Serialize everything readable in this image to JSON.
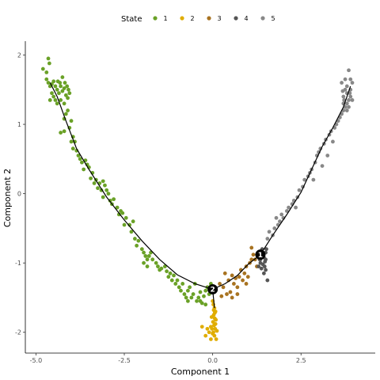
{
  "chart_data": {
    "type": "scatter",
    "xlabel": "Component 1",
    "ylabel": "Component 2",
    "xlim": [
      -5.3,
      4.6
    ],
    "ylim": [
      -2.3,
      2.2
    ],
    "xticks": [
      {
        "value": -5.0,
        "label": "-5.0"
      },
      {
        "value": -2.5,
        "label": "-2.5"
      },
      {
        "value": 0.0,
        "label": "0.0"
      },
      {
        "value": 2.5,
        "label": "2.5"
      }
    ],
    "yticks": [
      {
        "value": 2,
        "label": "2"
      },
      {
        "value": 1,
        "label": "1"
      },
      {
        "value": 0,
        "label": "0"
      },
      {
        "value": -1,
        "label": "-1"
      },
      {
        "value": -2,
        "label": "-2"
      }
    ],
    "grid": false,
    "legend": {
      "title": "State",
      "placement": "top",
      "entries": [
        {
          "label": "1",
          "color": "#6aa127"
        },
        {
          "label": "2",
          "color": "#e0ad00"
        },
        {
          "label": "3",
          "color": "#a87321"
        },
        {
          "label": "4",
          "color": "#555555"
        },
        {
          "label": "5",
          "color": "#888888"
        }
      ]
    },
    "trajectory": [
      [
        -4.6,
        1.6
      ],
      [
        -4.4,
        1.4
      ],
      [
        -4.15,
        1.05
      ],
      [
        -3.85,
        0.65
      ],
      [
        -3.5,
        0.35
      ],
      [
        -3.0,
        -0.05
      ],
      [
        -2.5,
        -0.38
      ],
      [
        -2.0,
        -0.68
      ],
      [
        -1.5,
        -0.95
      ],
      [
        -1.0,
        -1.17
      ],
      [
        -0.5,
        -1.3
      ],
      [
        0.0,
        -1.38
      ],
      [
        0.35,
        -1.3
      ],
      [
        0.7,
        -1.18
      ],
      [
        1.0,
        -1.02
      ],
      [
        1.35,
        -0.88
      ],
      [
        1.7,
        -0.6
      ],
      [
        2.1,
        -0.3
      ],
      [
        2.5,
        0.02
      ],
      [
        2.8,
        0.35
      ],
      [
        3.1,
        0.68
      ],
      [
        3.4,
        0.95
      ],
      [
        3.7,
        1.25
      ],
      [
        3.9,
        1.55
      ]
    ],
    "trajectory_branch": [
      [
        0.0,
        -1.38
      ],
      [
        0.05,
        -1.65
      ]
    ],
    "branch_points": [
      {
        "label": "1",
        "x": 1.35,
        "y": -0.88
      },
      {
        "label": "2",
        "x": 0.0,
        "y": -1.38
      }
    ],
    "series": [
      {
        "name": "1",
        "color": "#6aa127",
        "points": [
          [
            -4.8,
            1.8
          ],
          [
            -4.7,
            1.75
          ],
          [
            -4.65,
            1.95
          ],
          [
            -4.62,
            1.88
          ],
          [
            -4.7,
            1.65
          ],
          [
            -4.65,
            1.6
          ],
          [
            -4.6,
            1.55
          ],
          [
            -4.55,
            1.58
          ],
          [
            -4.5,
            1.62
          ],
          [
            -4.45,
            1.55
          ],
          [
            -4.4,
            1.5
          ],
          [
            -4.35,
            1.45
          ],
          [
            -4.3,
            1.55
          ],
          [
            -4.25,
            1.48
          ],
          [
            -4.2,
            1.52
          ],
          [
            -4.15,
            1.42
          ],
          [
            -4.1,
            1.38
          ],
          [
            -4.55,
            1.45
          ],
          [
            -4.5,
            1.4
          ],
          [
            -4.45,
            1.35
          ],
          [
            -4.38,
            1.62
          ],
          [
            -4.32,
            1.6
          ],
          [
            -4.25,
            1.68
          ],
          [
            -4.18,
            1.6
          ],
          [
            -4.12,
            1.55
          ],
          [
            -4.08,
            1.5
          ],
          [
            -4.05,
            1.45
          ],
          [
            -4.6,
            1.35
          ],
          [
            -4.4,
            1.3
          ],
          [
            -4.3,
            1.35
          ],
          [
            -4.2,
            1.3
          ],
          [
            -4.1,
            1.2
          ],
          [
            -4.15,
            1.15
          ],
          [
            -4.0,
            1.05
          ],
          [
            -4.2,
            1.08
          ],
          [
            -4.3,
            0.88
          ],
          [
            -4.2,
            0.9
          ],
          [
            -4.05,
            0.95
          ],
          [
            -3.95,
            0.82
          ],
          [
            -3.9,
            0.75
          ],
          [
            -4.0,
            0.75
          ],
          [
            -3.95,
            0.65
          ],
          [
            -3.85,
            0.62
          ],
          [
            -3.8,
            0.55
          ],
          [
            -3.75,
            0.5
          ],
          [
            -3.7,
            0.45
          ],
          [
            -3.6,
            0.48
          ],
          [
            -3.55,
            0.42
          ],
          [
            -3.65,
            0.35
          ],
          [
            -3.5,
            0.38
          ],
          [
            -3.4,
            0.3
          ],
          [
            -3.45,
            0.22
          ],
          [
            -3.35,
            0.15
          ],
          [
            -3.3,
            0.2
          ],
          [
            -3.2,
            0.15
          ],
          [
            -3.1,
            0.18
          ],
          [
            -3.05,
            0.12
          ],
          [
            -3.15,
            0.05
          ],
          [
            -3.25,
            0.08
          ],
          [
            -3.0,
            0.05
          ],
          [
            -2.95,
            0.0
          ],
          [
            -3.1,
            -0.05
          ],
          [
            -2.9,
            -0.1
          ],
          [
            -2.8,
            -0.08
          ],
          [
            -2.85,
            -0.15
          ],
          [
            -2.7,
            -0.2
          ],
          [
            -2.6,
            -0.25
          ],
          [
            -2.65,
            -0.3
          ],
          [
            -2.55,
            -0.28
          ],
          [
            -2.45,
            -0.35
          ],
          [
            -2.5,
            -0.45
          ],
          [
            -2.35,
            -0.45
          ],
          [
            -2.25,
            -0.4
          ],
          [
            -2.3,
            -0.55
          ],
          [
            -2.2,
            -0.65
          ],
          [
            -2.1,
            -0.68
          ],
          [
            -2.15,
            -0.75
          ],
          [
            -2.0,
            -0.8
          ],
          [
            -1.95,
            -0.85
          ],
          [
            -1.9,
            -0.9
          ],
          [
            -1.85,
            -0.95
          ],
          [
            -1.8,
            -0.9
          ],
          [
            -1.75,
            -0.85
          ],
          [
            -1.95,
            -1.0
          ],
          [
            -1.85,
            -1.05
          ],
          [
            -1.7,
            -0.95
          ],
          [
            -1.6,
            -1.0
          ],
          [
            -1.55,
            -1.05
          ],
          [
            -1.5,
            -1.1
          ],
          [
            -1.45,
            -1.08
          ],
          [
            -1.35,
            -1.05
          ],
          [
            -1.3,
            -1.12
          ],
          [
            -1.25,
            -1.2
          ],
          [
            -1.2,
            -1.15
          ],
          [
            -1.15,
            -1.25
          ],
          [
            -1.1,
            -1.18
          ],
          [
            -1.05,
            -1.3
          ],
          [
            -1.0,
            -1.25
          ],
          [
            -0.95,
            -1.35
          ],
          [
            -0.9,
            -1.4
          ],
          [
            -0.85,
            -1.3
          ],
          [
            -0.8,
            -1.45
          ],
          [
            -0.75,
            -1.5
          ],
          [
            -0.7,
            -1.4
          ],
          [
            -0.65,
            -1.35
          ],
          [
            -0.6,
            -1.5
          ],
          [
            -0.55,
            -1.45
          ],
          [
            -0.5,
            -1.3
          ],
          [
            -0.45,
            -1.55
          ],
          [
            -0.4,
            -1.5
          ],
          [
            -0.35,
            -1.42
          ],
          [
            -0.3,
            -1.58
          ],
          [
            -0.25,
            -1.48
          ],
          [
            -0.2,
            -1.4
          ],
          [
            -0.15,
            -1.35
          ],
          [
            -0.1,
            -1.45
          ],
          [
            -0.05,
            -1.3
          ],
          [
            -0.35,
            -1.55
          ],
          [
            -0.2,
            -1.6
          ],
          [
            -0.7,
            -1.55
          ]
        ]
      },
      {
        "name": "2",
        "color": "#e0ad00",
        "points": [
          [
            0.0,
            -1.55
          ],
          [
            0.02,
            -1.6
          ],
          [
            0.05,
            -1.65
          ],
          [
            0.08,
            -1.7
          ],
          [
            0.03,
            -1.75
          ],
          [
            0.06,
            -1.8
          ],
          [
            0.01,
            -1.85
          ],
          [
            0.04,
            -1.9
          ],
          [
            0.07,
            -1.95
          ],
          [
            0.02,
            -2.0
          ],
          [
            -0.02,
            -1.95
          ],
          [
            0.05,
            -2.05
          ],
          [
            0.08,
            -1.88
          ],
          [
            -0.05,
            -1.92
          ],
          [
            -0.1,
            -2.0
          ],
          [
            -0.15,
            -1.95
          ],
          [
            -0.2,
            -2.05
          ],
          [
            -0.05,
            -2.1
          ],
          [
            0.1,
            -2.1
          ],
          [
            0.0,
            -2.02
          ],
          [
            0.06,
            -1.72
          ],
          [
            0.03,
            -1.68
          ],
          [
            -0.03,
            -1.78
          ],
          [
            0.09,
            -1.82
          ],
          [
            -0.3,
            -1.92
          ],
          [
            0.12,
            -1.98
          ]
        ]
      },
      {
        "name": "3",
        "color": "#a87321",
        "points": [
          [
            0.2,
            -1.3
          ],
          [
            0.3,
            -1.35
          ],
          [
            0.35,
            -1.15
          ],
          [
            0.45,
            -1.25
          ],
          [
            0.5,
            -1.42
          ],
          [
            0.55,
            -1.18
          ],
          [
            0.6,
            -1.3
          ],
          [
            0.65,
            -1.22
          ],
          [
            0.7,
            -1.35
          ],
          [
            0.75,
            -1.2
          ],
          [
            0.8,
            -1.1
          ],
          [
            0.85,
            -1.25
          ],
          [
            0.9,
            -1.15
          ],
          [
            0.95,
            -1.05
          ],
          [
            1.0,
            -1.2
          ],
          [
            1.05,
            -1.0
          ],
          [
            1.1,
            -0.95
          ],
          [
            1.15,
            -0.88
          ],
          [
            1.2,
            -0.95
          ],
          [
            1.25,
            -1.05
          ],
          [
            0.4,
            -1.45
          ],
          [
            0.55,
            -1.5
          ],
          [
            0.25,
            -1.48
          ],
          [
            1.1,
            -0.78
          ],
          [
            0.7,
            -1.45
          ],
          [
            0.95,
            -1.3
          ]
        ]
      },
      {
        "name": "4",
        "color": "#555555",
        "points": [
          [
            1.3,
            -0.9
          ],
          [
            1.35,
            -0.95
          ],
          [
            1.4,
            -0.88
          ],
          [
            1.45,
            -0.92
          ],
          [
            1.5,
            -0.85
          ],
          [
            1.35,
            -1.0
          ],
          [
            1.42,
            -1.02
          ],
          [
            1.48,
            -0.98
          ],
          [
            1.3,
            -1.05
          ],
          [
            1.38,
            -1.08
          ],
          [
            1.52,
            -0.8
          ],
          [
            1.5,
            -1.1
          ],
          [
            1.55,
            -1.25
          ],
          [
            1.45,
            -1.15
          ],
          [
            1.4,
            -0.8
          ],
          [
            1.33,
            -0.95
          ],
          [
            1.47,
            -1.05
          ],
          [
            1.5,
            -0.95
          ]
        ]
      },
      {
        "name": "5",
        "color": "#888888",
        "points": [
          [
            1.55,
            -0.65
          ],
          [
            1.6,
            -0.55
          ],
          [
            1.7,
            -0.6
          ],
          [
            1.75,
            -0.5
          ],
          [
            1.85,
            -0.45
          ],
          [
            1.9,
            -0.4
          ],
          [
            1.95,
            -0.3
          ],
          [
            2.0,
            -0.35
          ],
          [
            2.1,
            -0.25
          ],
          [
            2.15,
            -0.2
          ],
          [
            2.25,
            -0.15
          ],
          [
            2.3,
            -0.1
          ],
          [
            2.4,
            -0.05
          ],
          [
            2.45,
            0.05
          ],
          [
            2.55,
            0.1
          ],
          [
            2.6,
            0.2
          ],
          [
            2.7,
            0.25
          ],
          [
            2.75,
            0.3
          ],
          [
            2.8,
            0.35
          ],
          [
            2.9,
            0.45
          ],
          [
            2.95,
            0.55
          ],
          [
            3.0,
            0.6
          ],
          [
            3.05,
            0.65
          ],
          [
            3.15,
            0.72
          ],
          [
            3.2,
            0.78
          ],
          [
            3.3,
            0.85
          ],
          [
            3.35,
            0.9
          ],
          [
            3.45,
            0.95
          ],
          [
            3.5,
            1.0
          ],
          [
            3.55,
            1.05
          ],
          [
            3.6,
            1.1
          ],
          [
            3.65,
            1.15
          ],
          [
            3.7,
            1.2
          ],
          [
            3.75,
            1.25
          ],
          [
            3.8,
            1.3
          ],
          [
            3.85,
            1.35
          ],
          [
            3.7,
            1.4
          ],
          [
            3.75,
            1.5
          ],
          [
            3.8,
            1.45
          ],
          [
            3.9,
            1.5
          ],
          [
            3.7,
            1.3
          ],
          [
            3.85,
            1.25
          ],
          [
            3.95,
            1.35
          ],
          [
            3.8,
            1.55
          ],
          [
            3.65,
            1.6
          ],
          [
            3.9,
            1.65
          ],
          [
            3.85,
            1.78
          ],
          [
            3.75,
            1.65
          ],
          [
            3.9,
            1.4
          ],
          [
            3.8,
            1.2
          ],
          [
            3.72,
            1.35
          ],
          [
            3.88,
            1.45
          ],
          [
            3.95,
            1.6
          ],
          [
            3.68,
            1.48
          ],
          [
            2.85,
            0.2
          ],
          [
            3.1,
            0.4
          ],
          [
            2.35,
            -0.2
          ],
          [
            1.8,
            -0.35
          ],
          [
            3.25,
            0.55
          ],
          [
            3.4,
            0.75
          ]
        ]
      }
    ]
  }
}
